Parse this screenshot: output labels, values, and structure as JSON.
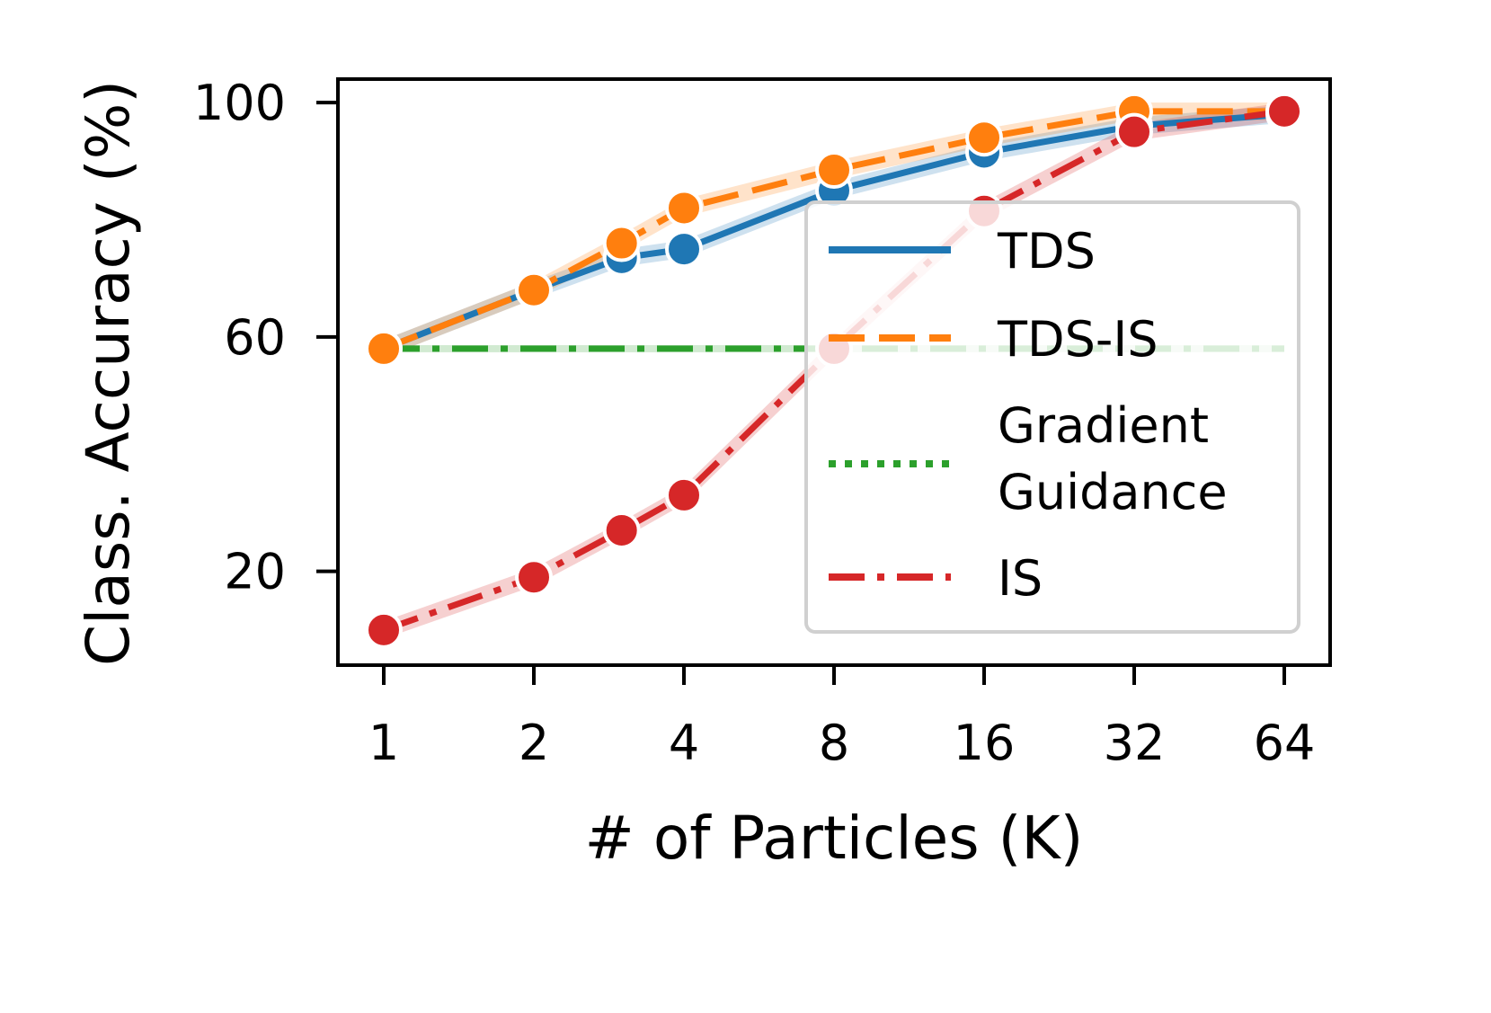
{
  "chart_data": {
    "type": "line",
    "title": "",
    "xlabel": "# of Particles (K)",
    "ylabel": "Class. Accuracy (%)",
    "x_scale": "log2",
    "x": [
      1,
      2,
      3,
      4,
      8,
      16,
      32,
      64
    ],
    "x_ticks": [
      1,
      2,
      4,
      8,
      16,
      32,
      64
    ],
    "x_tick_labels": [
      "1",
      "2",
      "4",
      "8",
      "16",
      "32",
      "64"
    ],
    "y_ticks": [
      20,
      60,
      100
    ],
    "y_tick_labels": [
      "20",
      "60",
      "100"
    ],
    "ylim": [
      4,
      104
    ],
    "grid": false,
    "legend_position": "center-right",
    "series": [
      {
        "name": "TDS",
        "legend_label": "TDS",
        "color": "#1f77b4",
        "style": "solid",
        "values": [
          58,
          68,
          73.5,
          75,
          85,
          91.5,
          96,
          98
        ],
        "band": 1.5,
        "markers": true
      },
      {
        "name": "TDS-IS",
        "legend_label": "TDS-IS",
        "color": "#ff7f0e",
        "style": "dashed",
        "values": [
          58,
          68,
          76,
          82,
          88.5,
          94,
          98.5,
          98.5
        ],
        "band": 1.5,
        "markers": true
      },
      {
        "name": "Gradient Guidance",
        "legend_label": [
          "Gradient",
          "Guidance"
        ],
        "color": "#2ca02c",
        "style": "dashdot",
        "values": [
          58,
          58,
          58,
          58,
          58,
          58,
          58,
          58
        ],
        "band": 0.6,
        "markers": false
      },
      {
        "name": "IS",
        "legend_label": "IS",
        "color": "#d62728",
        "style": "dashdot",
        "values": [
          10,
          19,
          27,
          33,
          58,
          81.5,
          95,
          98.5
        ],
        "band": 1.5,
        "markers": true
      }
    ]
  }
}
